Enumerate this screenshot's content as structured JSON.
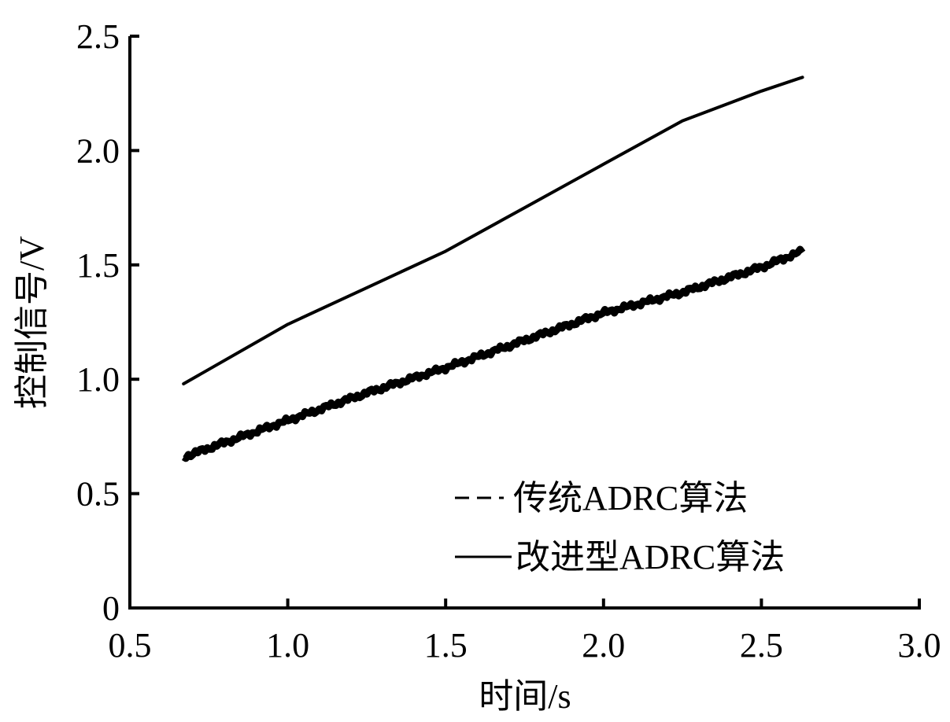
{
  "chart_data": {
    "type": "line",
    "title": "",
    "xlabel": "时间/s",
    "ylabel": "控制信号/V",
    "xlim": [
      0.5,
      3.0
    ],
    "ylim": [
      0,
      2.5
    ],
    "xticks": [
      "0.5",
      "1.0",
      "1.5",
      "2.0",
      "2.5",
      "3.0"
    ],
    "yticks": [
      "0",
      "0.5",
      "1.0",
      "1.5",
      "2.0",
      "2.5"
    ],
    "grid": false,
    "legend_position": "lower right",
    "x": [
      0.67,
      1.0,
      1.25,
      1.5,
      1.75,
      2.0,
      2.25,
      2.5,
      2.63
    ],
    "series": [
      {
        "name": "传统ADRC算法",
        "style": "dashed (noisy, thick)",
        "values": [
          0.66,
          0.82,
          0.94,
          1.05,
          1.17,
          1.29,
          1.38,
          1.49,
          1.56
        ]
      },
      {
        "name": "改进型ADRC算法",
        "style": "solid",
        "values": [
          0.98,
          1.24,
          1.4,
          1.56,
          1.75,
          1.94,
          2.13,
          2.26,
          2.32
        ]
      }
    ]
  },
  "legend": {
    "items": [
      {
        "marker": "- -",
        "label": "传统ADRC算法"
      },
      {
        "marker": "——",
        "label": "改进型ADRC算法"
      }
    ]
  },
  "axes": {
    "x_title": "时间/s",
    "y_title": "控制信号/V"
  }
}
